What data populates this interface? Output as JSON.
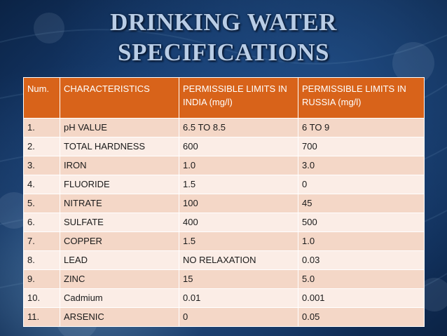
{
  "slide": {
    "title_line1": "DRINKING WATER",
    "title_line2": "SPECIFICATIONS"
  },
  "table": {
    "headers": [
      "Num.",
      "CHARACTERISTICS",
      "PERMISSIBLE LIMITS IN INDIA (mg/l)",
      "PERMISSIBLE LIMITS IN RUSSIA  (mg/l)"
    ],
    "rows": [
      [
        "1.",
        "pH  VALUE",
        "6.5 TO 8.5",
        "6 TO 9"
      ],
      [
        "2.",
        "TOTAL HARDNESS",
        "600",
        "700"
      ],
      [
        "3.",
        "IRON",
        "1.0",
        "3.0"
      ],
      [
        "4.",
        "FLUORIDE",
        "1.5",
        "0"
      ],
      [
        "5.",
        "NITRATE",
        "100",
        "45"
      ],
      [
        "6.",
        "SULFATE",
        "400",
        "500"
      ],
      [
        "7.",
        "COPPER",
        "1.5",
        "1.0"
      ],
      [
        "8.",
        "LEAD",
        "NO RELAXATION",
        "0.03"
      ],
      [
        "9.",
        "ZINC",
        "15",
        "5.0"
      ],
      [
        "10.",
        "Cadmium",
        "0.01",
        "0.001"
      ],
      [
        "11.",
        "ARSENIC",
        "0",
        "0.05"
      ]
    ]
  },
  "colors": {
    "header_bg": "#d8631a",
    "row_odd_bg": "#f4d7c7",
    "row_even_bg": "#fbede6",
    "title_color": "#b9cde6"
  }
}
